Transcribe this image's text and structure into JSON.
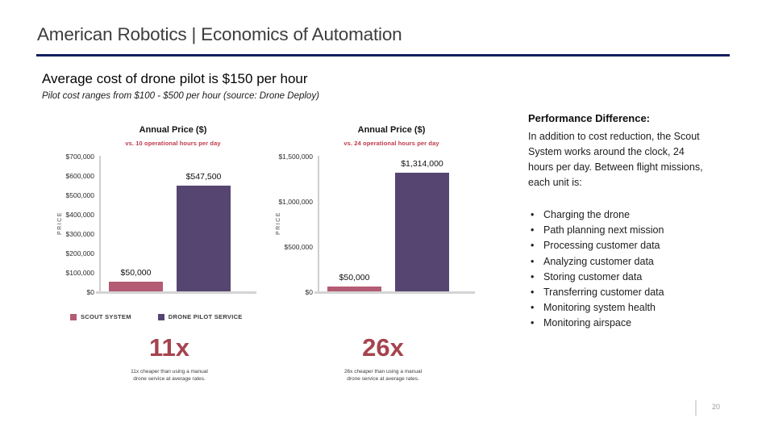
{
  "slide": {
    "header_title": "American Robotics | Economics of Automation",
    "heading": "Average cost of drone pilot is $150 per hour",
    "subheading": "Pilot cost ranges from $100 - $500 per hour (source: Drone Deploy)",
    "page_number": "20",
    "accent_navy": "#131f5e",
    "accent_red": "#bf3a4b",
    "accent_brick": "#a5434f"
  },
  "legend": {
    "items": [
      {
        "label": "SCOUT SYSTEM",
        "color": "#b35c74"
      },
      {
        "label": "DRONE PILOT SERVICE",
        "color": "#564571"
      }
    ]
  },
  "chart_data": [
    {
      "type": "bar",
      "title": "Annual Price ($)",
      "subtitle": "vs. 10 operational hours per day",
      "xlabel": "",
      "ylabel": "PRICE",
      "ylim": [
        0,
        700000
      ],
      "yticks": [
        "$700,000",
        "$600,000",
        "$500,000",
        "$400,000",
        "$300,000",
        "$200,000",
        "$100,000",
        "$0"
      ],
      "categories": [
        "Scout System",
        "Drone Pilot Service"
      ],
      "values": [
        50000,
        547500
      ],
      "data_labels": [
        "$50,000",
        "$547,500"
      ],
      "colors": [
        "#b35c74",
        "#564571"
      ],
      "grid": false,
      "legend_position": "bottom-left",
      "callout": {
        "value": "11x",
        "caption_line1": "11x cheaper than using a manual",
        "caption_line2": "drone service at average rates."
      }
    },
    {
      "type": "bar",
      "title": "Annual Price ($)",
      "subtitle": "vs. 24 operational hours per day",
      "xlabel": "",
      "ylabel": "PRICE",
      "ylim": [
        0,
        1500000
      ],
      "yticks": [
        "$1,500,000",
        "$1,000,000",
        "$500,000",
        "$0"
      ],
      "categories": [
        "Scout System",
        "Drone Pilot Service"
      ],
      "values": [
        50000,
        1314000
      ],
      "data_labels": [
        "$50,000",
        "$1,314,000"
      ],
      "colors": [
        "#b35c74",
        "#564571"
      ],
      "grid": false,
      "legend_position": "none",
      "callout": {
        "value": "26x",
        "caption_line1": "26x cheaper than using a manual",
        "caption_line2": "drone service at average rates."
      }
    }
  ],
  "performance": {
    "heading": "Performance Difference:",
    "paragraph": "In addition to cost reduction, the Scout System works around the clock, 24 hours per day. Between flight missions, each unit is:",
    "bullets": [
      "Charging the drone",
      "Path planning next mission",
      "Processing customer data",
      "Analyzing customer data",
      "Storing customer data",
      "Transferring customer data",
      "Monitoring system health",
      "Monitoring airspace"
    ]
  }
}
